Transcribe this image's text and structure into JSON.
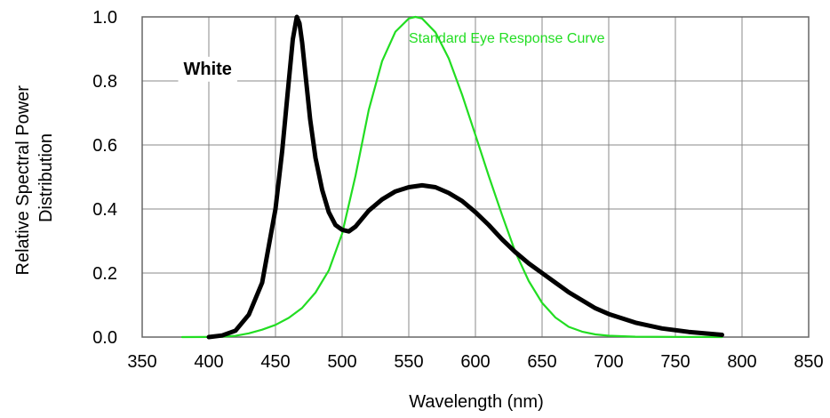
{
  "chart_data": {
    "type": "line",
    "xlabel": "Wavelength (nm)",
    "ylabel_lines": [
      "Relative Spectral Power",
      "Distribution"
    ],
    "xlim": [
      350,
      850
    ],
    "ylim": [
      0,
      1.0
    ],
    "x_ticks": [
      350,
      400,
      450,
      500,
      550,
      600,
      650,
      700,
      750,
      800,
      850
    ],
    "x_tick_labels": [
      "350",
      "400",
      "450",
      "500",
      "550",
      "600",
      "650",
      "700",
      "750",
      "800",
      "850"
    ],
    "y_ticks": [
      0,
      0.2,
      0.4,
      0.6,
      0.8,
      1.0
    ],
    "y_tick_labels": [
      "0.0",
      "0.2",
      "0.4",
      "0.6",
      "0.8",
      "1.0"
    ],
    "grid": true,
    "annotations": [
      {
        "text": "White",
        "x": 381,
        "y": 0.82,
        "color": "#000000",
        "bold": true
      },
      {
        "text": "Standard Eye Response Curve",
        "x": 550,
        "y": 0.92,
        "color": "#22dd22",
        "bold": false
      }
    ],
    "series": [
      {
        "color": "#000000",
        "x": [
          400,
          410,
          420,
          430,
          440,
          450,
          455,
          460,
          463,
          466,
          468,
          470,
          473,
          476,
          480,
          485,
          490,
          495,
          500,
          505,
          510,
          515,
          520,
          530,
          540,
          550,
          560,
          570,
          580,
          590,
          600,
          610,
          620,
          630,
          640,
          650,
          660,
          670,
          680,
          690,
          700,
          720,
          740,
          760,
          785
        ],
        "y": [
          0.0,
          0.005,
          0.02,
          0.07,
          0.17,
          0.4,
          0.58,
          0.8,
          0.93,
          1.0,
          0.98,
          0.92,
          0.8,
          0.68,
          0.56,
          0.46,
          0.39,
          0.35,
          0.335,
          0.33,
          0.345,
          0.37,
          0.395,
          0.43,
          0.455,
          0.468,
          0.474,
          0.468,
          0.45,
          0.425,
          0.39,
          0.35,
          0.305,
          0.265,
          0.23,
          0.2,
          0.17,
          0.14,
          0.115,
          0.09,
          0.072,
          0.045,
          0.027,
          0.016,
          0.007
        ]
      },
      {
        "color": "#22dd22",
        "x": [
          380,
          400,
          410,
          420,
          430,
          440,
          450,
          460,
          470,
          480,
          490,
          500,
          510,
          520,
          530,
          540,
          550,
          555,
          560,
          570,
          580,
          590,
          600,
          610,
          620,
          630,
          640,
          650,
          660,
          670,
          680,
          690,
          700,
          720,
          785
        ],
        "y": [
          0.0,
          0.0004,
          0.0012,
          0.004,
          0.0116,
          0.023,
          0.038,
          0.06,
          0.091,
          0.139,
          0.208,
          0.323,
          0.503,
          0.71,
          0.862,
          0.954,
          0.995,
          1.0,
          0.995,
          0.952,
          0.87,
          0.757,
          0.631,
          0.503,
          0.381,
          0.265,
          0.175,
          0.107,
          0.061,
          0.032,
          0.017,
          0.0082,
          0.0041,
          0.001,
          0.0
        ]
      }
    ]
  }
}
